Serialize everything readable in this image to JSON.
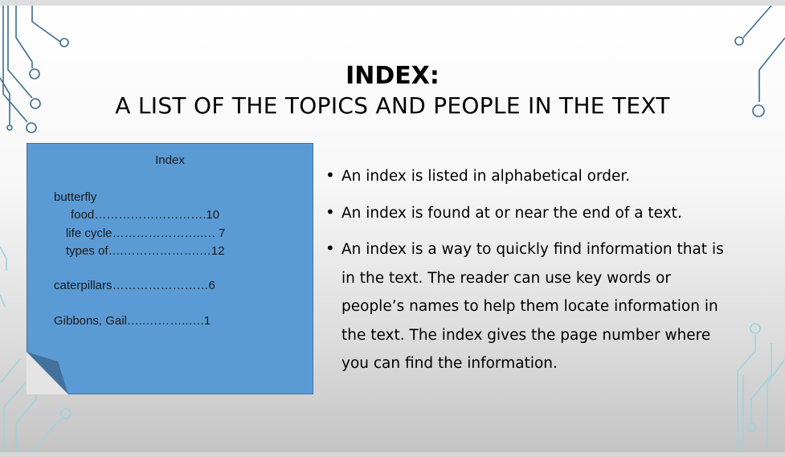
{
  "slide": {
    "title_line1": "INDEX:",
    "title_line2": "A LIST OF THE TOPICS AND PEOPLE IN THE TEXT"
  },
  "index_note": {
    "heading": "Index",
    "entries": [
      {
        "text": "butterfly"
      },
      {
        "text": "food……………………….10"
      },
      {
        "text": "life cycle………………….…. 7"
      },
      {
        "text": "types of….……………….…12"
      },
      {
        "text": "caterpillars……………………6"
      },
      {
        "text": "Gibbons, Gail…..………..….1"
      }
    ]
  },
  "bullets": [
    "An index is listed in alphabetical order.",
    "An index is found at or near the end of a text.",
    "An index is a way to quickly find information that is in the text. The reader can use key words or people’s names to help them locate information in the text. The index gives the page number where you can find the information."
  ],
  "colors": {
    "note_fill": "#5b9bd5",
    "note_border": "#41719c",
    "circuit_left_top": "#3b6e8f",
    "circuit_light": "#9fd3dc"
  }
}
